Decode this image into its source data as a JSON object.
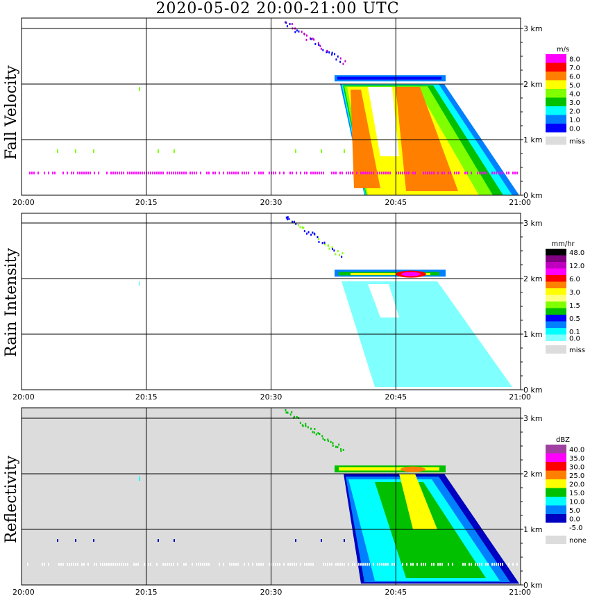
{
  "title": "2020-05-02   20:00-21:00 UTC",
  "time_ticks": [
    "20:00",
    "20:15",
    "20:30",
    "20:45",
    "21:00"
  ],
  "height_ticks": [
    "0 km",
    "1 km",
    "2 km",
    "3 km"
  ],
  "panels": [
    {
      "id": "fall",
      "label": "Fall Velocity",
      "unit": "m/s",
      "miss_label": "miss",
      "legend_entries": [
        {
          "label": "8.0",
          "color": "#ff00ff"
        },
        {
          "label": "7.0",
          "color": "#ff0000"
        },
        {
          "label": "6.0",
          "color": "#ff8000"
        },
        {
          "label": "5.0",
          "color": "#ffff00"
        },
        {
          "label": "4.0",
          "color": "#80ff00"
        },
        {
          "label": "3.0",
          "color": "#00c000"
        },
        {
          "label": "2.0",
          "color": "#00ffff"
        },
        {
          "label": "1.0",
          "color": "#0080ff"
        },
        {
          "label": "0.0",
          "color": "#0000ff"
        }
      ]
    },
    {
      "id": "rain",
      "label": "Rain Intensity",
      "unit": "mm/hr",
      "miss_label": "miss",
      "legend_entries": [
        {
          "label": "48.0",
          "color": "#000000"
        },
        {
          "label": "",
          "color": "#800080"
        },
        {
          "label": "12.0",
          "color": "#c000c0"
        },
        {
          "label": "",
          "color": "#ff00ff"
        },
        {
          "label": "6.0",
          "color": "#ff0000"
        },
        {
          "label": "",
          "color": "#ff8000"
        },
        {
          "label": "3.0",
          "color": "#ffff00"
        },
        {
          "label": "",
          "color": "#ffff80"
        },
        {
          "label": "1.5",
          "color": "#80ff00"
        },
        {
          "label": "",
          "color": "#00c000"
        },
        {
          "label": "0.5",
          "color": "#0000ff"
        },
        {
          "label": "",
          "color": "#0080ff"
        },
        {
          "label": "0.1",
          "color": "#00ffff"
        },
        {
          "label": "0.0",
          "color": "#80ffff"
        }
      ]
    },
    {
      "id": "refl",
      "label": "Reflectivity",
      "unit": "dBZ",
      "miss_label": "none",
      "legend_entries": [
        {
          "label": "40.0",
          "color": "#a040a0"
        },
        {
          "label": "35.0",
          "color": "#ff00ff"
        },
        {
          "label": "30.0",
          "color": "#ff0000"
        },
        {
          "label": "25.0",
          "color": "#ff8000"
        },
        {
          "label": "20.0",
          "color": "#ffff00"
        },
        {
          "label": "15.0",
          "color": "#00c000"
        },
        {
          "label": "10.0",
          "color": "#00ffff"
        },
        {
          "label": "5.0",
          "color": "#0080ff"
        },
        {
          "label": "0.0",
          "color": "#0000c0"
        },
        {
          "label": "-5.0",
          "color": "#ffffff"
        }
      ]
    }
  ],
  "chart_data": [
    {
      "type": "heatmap",
      "title": "Fall Velocity",
      "unit": "m/s",
      "x_range": [
        "20:00",
        "21:00"
      ],
      "y_range_km": [
        0,
        3.2
      ],
      "colorbar_levels": [
        0,
        1,
        2,
        3,
        4,
        5,
        6,
        7,
        8
      ],
      "features": [
        {
          "name": "bright band",
          "time_start": "20:37",
          "time_end": "20:51",
          "height_km": 2.1
        },
        {
          "name": "melting-layer high speeds",
          "peak_value": 8.0,
          "height_km": 0.4
        }
      ]
    },
    {
      "type": "heatmap",
      "title": "Rain Intensity",
      "unit": "mm/hr",
      "x_range": [
        "20:00",
        "21:00"
      ],
      "y_range_km": [
        0,
        3.2
      ],
      "colorbar_levels": [
        0.0,
        0.1,
        0.5,
        1.5,
        3.0,
        6.0,
        12.0,
        48.0
      ],
      "features": [
        {
          "name": "bright band",
          "time_start": "20:37",
          "time_end": "20:51",
          "height_km": 2.05,
          "peak_value": 12.0
        }
      ]
    },
    {
      "type": "heatmap",
      "title": "Reflectivity",
      "unit": "dBZ",
      "x_range": [
        "20:00",
        "21:00"
      ],
      "y_range_km": [
        0,
        3.2
      ],
      "colorbar_levels": [
        -5,
        0,
        5,
        10,
        15,
        20,
        25,
        30,
        35,
        40
      ],
      "features": [
        {
          "name": "bright band",
          "time_start": "20:37",
          "time_end": "20:51",
          "height_km": 2.05,
          "peak_value": 25.0
        }
      ]
    }
  ]
}
